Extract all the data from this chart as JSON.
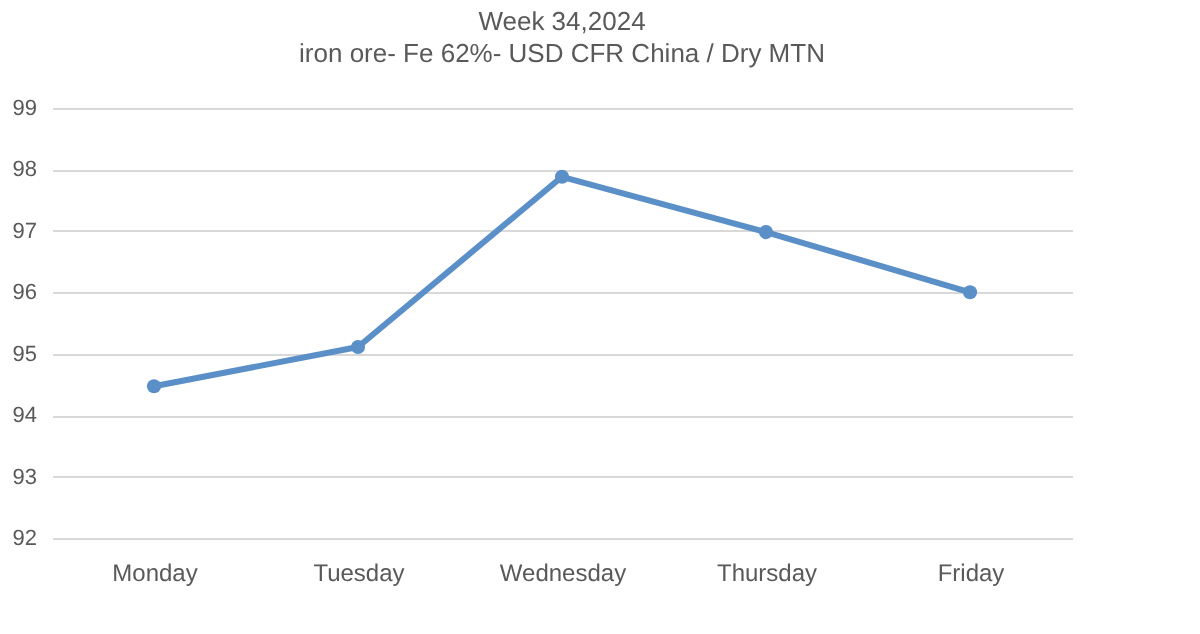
{
  "chart_data": {
    "type": "line",
    "title": "Week  34,2024",
    "subtitle": "iron ore- Fe 62%- USD CFR China / Dry MTN",
    "categories": [
      "Monday",
      "Tuesday",
      "Wednesday",
      "Thursday",
      "Friday"
    ],
    "series": [
      {
        "color": "#5b8fc7",
        "values": [
          94.47,
          95.11,
          97.88,
          96.98,
          96.0
        ]
      }
    ],
    "ylim": [
      92,
      99
    ],
    "yticks": [
      92,
      93,
      94,
      95,
      96,
      97,
      98,
      99
    ],
    "grid": "y",
    "marker": "circle",
    "line_style": "solid",
    "legend": false
  }
}
